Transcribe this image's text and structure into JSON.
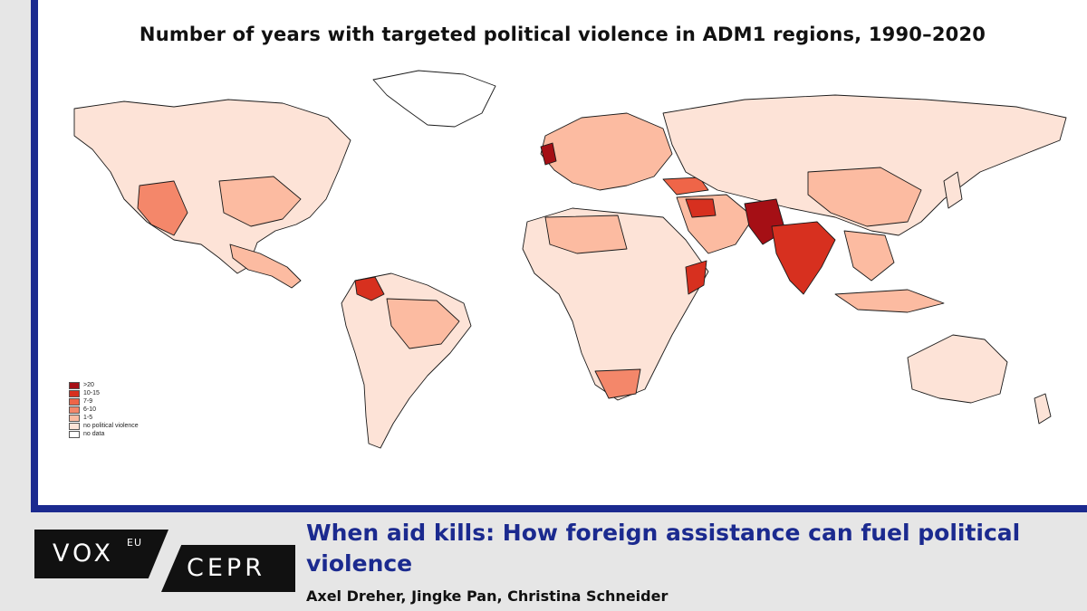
{
  "map": {
    "title": "Number of years with targeted political violence in ADM1 regions, 1990–2020",
    "legend": [
      {
        "label": ">20",
        "color": "#a50f15"
      },
      {
        "label": "10-15",
        "color": "#d7301f"
      },
      {
        "label": "7-9",
        "color": "#ef6548"
      },
      {
        "label": "6-10",
        "color": "#f4876a"
      },
      {
        "label": "1-5",
        "color": "#fcbba1"
      },
      {
        "label": "no political violence",
        "color": "#fde3d7"
      },
      {
        "label": "no data",
        "color": "#ffffff"
      }
    ],
    "colors": {
      "dark": "#a50f15",
      "high": "#d7301f",
      "mid": "#ef6548",
      "med": "#f4876a",
      "low": "#fcbba1",
      "none": "#fde3d7",
      "nodata": "#ffffff"
    }
  },
  "footer": {
    "logo_vox": "VOX",
    "logo_eu": "EU",
    "logo_cepr": "CEPR",
    "headline": "When aid kills: How foreign assistance can fuel political violence",
    "authors": "Axel Dreher, Jingke Pan, Christina Schneider"
  },
  "colors": {
    "accent": "#1b2a8f",
    "background": "#e6e6e6"
  }
}
